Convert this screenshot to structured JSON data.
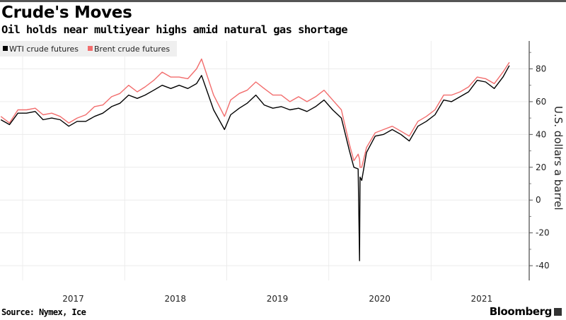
{
  "header": {
    "title": "Crude's Moves",
    "subtitle": "Oil holds near multiyear highs amid natural gas shortage"
  },
  "footer": {
    "source": "Source: Nymex, Ice",
    "logo": "Bloomberg"
  },
  "chart_data": {
    "type": "line",
    "title": "Crude's Moves",
    "subtitle": "Oil holds near multiyear highs amid natural gas shortage",
    "xlabel": "",
    "ylabel": "U.S. dollars a barrel",
    "y_axis_side": "right",
    "ylim": [
      -49,
      97
    ],
    "yticks": [
      -40,
      -20,
      0,
      20,
      40,
      60,
      80
    ],
    "xlim": [
      "2016-10-12",
      "2021-12-18"
    ],
    "xtick_labels": [
      "2017",
      "2018",
      "2019",
      "2020",
      "2021"
    ],
    "grid": true,
    "legend_position": "top-left",
    "x": [
      "2016-10-15",
      "2016-11-15",
      "2016-12-15",
      "2017-01-15",
      "2017-02-15",
      "2017-03-15",
      "2017-04-15",
      "2017-05-15",
      "2017-06-15",
      "2017-07-15",
      "2017-08-15",
      "2017-09-15",
      "2017-10-15",
      "2017-11-15",
      "2017-12-15",
      "2018-01-15",
      "2018-02-15",
      "2018-03-15",
      "2018-04-15",
      "2018-05-15",
      "2018-06-15",
      "2018-07-15",
      "2018-08-15",
      "2018-09-15",
      "2018-10-03",
      "2018-11-15",
      "2018-12-24",
      "2019-01-15",
      "2019-02-15",
      "2019-03-15",
      "2019-04-15",
      "2019-05-15",
      "2019-06-15",
      "2019-07-15",
      "2019-08-15",
      "2019-09-15",
      "2019-10-15",
      "2019-11-15",
      "2019-12-15",
      "2020-01-15",
      "2020-02-15",
      "2020-03-15",
      "2020-03-31",
      "2020-04-15",
      "2020-04-20",
      "2020-04-22",
      "2020-04-28",
      "2020-05-15",
      "2020-06-15",
      "2020-07-15",
      "2020-08-15",
      "2020-09-15",
      "2020-10-15",
      "2020-11-15",
      "2020-12-15",
      "2021-01-15",
      "2021-02-15",
      "2021-03-15",
      "2021-04-15",
      "2021-05-15",
      "2021-06-15",
      "2021-07-15",
      "2021-08-15",
      "2021-09-15",
      "2021-10-08"
    ],
    "series": [
      {
        "name": "WTI crude futures",
        "color": "#000000",
        "values": [
          49,
          46,
          53,
          53,
          54,
          49,
          50,
          49,
          45,
          48,
          48,
          51,
          53,
          57,
          59,
          64,
          62,
          64,
          67,
          70,
          68,
          70,
          68,
          71,
          76,
          55,
          43,
          52,
          56,
          59,
          64,
          58,
          56,
          57,
          55,
          56,
          54,
          57,
          61,
          55,
          50,
          30,
          20,
          19,
          -37,
          14,
          12,
          29,
          39,
          40,
          43,
          40,
          36,
          45,
          48,
          52,
          61,
          60,
          63,
          66,
          73,
          72,
          68,
          75,
          82
        ]
      },
      {
        "name": "Brent crude futures",
        "color": "#f26d6d",
        "values": [
          51,
          47,
          55,
          55,
          56,
          52,
          53,
          51,
          47,
          50,
          52,
          57,
          58,
          63,
          65,
          70,
          66,
          69,
          73,
          78,
          75,
          75,
          74,
          80,
          86,
          64,
          51,
          61,
          65,
          67,
          72,
          68,
          64,
          64,
          60,
          63,
          60,
          63,
          67,
          61,
          55,
          34,
          24,
          28,
          25,
          20,
          20,
          32,
          41,
          43,
          45,
          42,
          39,
          48,
          51,
          55,
          64,
          64,
          66,
          69,
          75,
          74,
          71,
          78,
          84
        ]
      }
    ]
  }
}
